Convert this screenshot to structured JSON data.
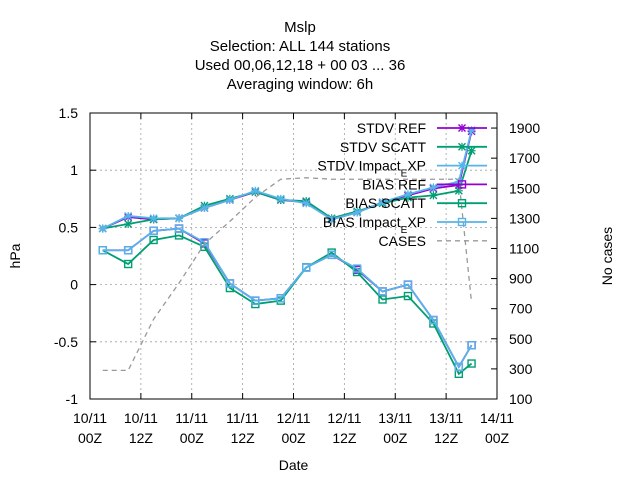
{
  "chart_data": {
    "type": "line",
    "title_lines": [
      "Mslp",
      "Selection: ALL     144 stations",
      "Used  00,06,12,18 + 00 03 ... 36",
      "Averaging window:  6h"
    ],
    "xlabel": "Date",
    "ylabel": "hPa",
    "y2label": "No cases",
    "xlim": [
      0,
      96
    ],
    "ylim": [
      -1,
      1.5
    ],
    "y2lim": [
      100,
      2000
    ],
    "x_ticks": [
      {
        "x": 0,
        "label": [
          "10/11",
          "00Z"
        ]
      },
      {
        "x": 12,
        "label": [
          "10/11",
          "12Z"
        ]
      },
      {
        "x": 24,
        "label": [
          "11/11",
          "00Z"
        ]
      },
      {
        "x": 36,
        "label": [
          "11/11",
          "12Z"
        ]
      },
      {
        "x": 48,
        "label": [
          "12/11",
          "00Z"
        ]
      },
      {
        "x": 60,
        "label": [
          "12/11",
          "12Z"
        ]
      },
      {
        "x": 72,
        "label": [
          "13/11",
          "00Z"
        ]
      },
      {
        "x": 84,
        "label": [
          "13/11",
          "12Z"
        ]
      },
      {
        "x": 96,
        "label": [
          "14/11",
          "00Z"
        ]
      }
    ],
    "y_ticks": [
      {
        "v": -1,
        "label": "-1"
      },
      {
        "v": -0.5,
        "label": "-0.5"
      },
      {
        "v": 0,
        "label": "0"
      },
      {
        "v": 0.5,
        "label": "0.5"
      },
      {
        "v": 1,
        "label": "1"
      },
      {
        "v": 1.5,
        "label": "1.5"
      }
    ],
    "y2_ticks": [
      {
        "v": 100,
        "label": "100"
      },
      {
        "v": 300,
        "label": "300"
      },
      {
        "v": 500,
        "label": "500"
      },
      {
        "v": 700,
        "label": "700"
      },
      {
        "v": 900,
        "label": "900"
      },
      {
        "v": 1100,
        "label": "1100"
      },
      {
        "v": 1300,
        "label": "1300"
      },
      {
        "v": 1500,
        "label": "1500"
      },
      {
        "v": 1700,
        "label": "1700"
      },
      {
        "v": 1900,
        "label": "1900"
      }
    ],
    "grid": true,
    "legend_position": "top-right",
    "series": [
      {
        "name": "STDV REF",
        "color": "#9400d3",
        "marker": "x",
        "dash": false,
        "axis": "y",
        "x": [
          3,
          9,
          15,
          21,
          27,
          33,
          39,
          45,
          51,
          57,
          63,
          69,
          75,
          81,
          87,
          90
        ],
        "y": [
          0.49,
          0.59,
          0.57,
          0.58,
          0.67,
          0.74,
          0.81,
          0.74,
          0.72,
          0.57,
          0.63,
          0.72,
          0.78,
          0.84,
          0.87,
          1.34
        ]
      },
      {
        "name": "STDV SCATT",
        "color": "#009e73",
        "marker": "x",
        "dash": false,
        "axis": "y",
        "x": [
          3,
          9,
          15,
          21,
          27,
          33,
          39,
          45,
          51,
          57,
          63,
          69,
          75,
          81,
          87,
          90
        ],
        "y": [
          0.49,
          0.53,
          0.57,
          0.58,
          0.69,
          0.75,
          0.81,
          0.74,
          0.73,
          0.58,
          0.64,
          0.71,
          0.76,
          0.78,
          0.82,
          1.17
        ]
      },
      {
        "name": "STDV Impact_EXP",
        "color": "#56b4e9",
        "marker": "x",
        "dash": false,
        "axis": "y",
        "x": [
          3,
          9,
          15,
          21,
          27,
          33,
          39,
          45,
          51,
          57,
          63,
          69,
          75,
          81,
          87,
          90
        ],
        "y": [
          0.49,
          0.6,
          0.58,
          0.58,
          0.67,
          0.74,
          0.82,
          0.75,
          0.71,
          0.57,
          0.63,
          0.72,
          0.79,
          0.85,
          0.9,
          1.35
        ]
      },
      {
        "name": "BIAS REF",
        "color": "#9400d3",
        "marker": "sq",
        "dash": false,
        "axis": "y",
        "x": [
          3,
          9,
          15,
          21,
          27,
          33,
          39,
          45,
          51,
          57,
          63,
          69,
          75,
          81,
          87,
          90
        ],
        "y": [
          0.3,
          0.3,
          0.47,
          0.49,
          0.36,
          0.01,
          -0.14,
          -0.12,
          0.15,
          0.26,
          0.13,
          -0.06,
          0.0,
          -0.31,
          -0.72,
          -0.53
        ]
      },
      {
        "name": "BIAS SCATT",
        "color": "#009e73",
        "marker": "sq",
        "dash": false,
        "axis": "y",
        "x": [
          3,
          9,
          15,
          21,
          27,
          33,
          39,
          45,
          51,
          57,
          63,
          69,
          75,
          81,
          87,
          90
        ],
        "y": [
          0.3,
          0.18,
          0.39,
          0.43,
          0.33,
          -0.03,
          -0.17,
          -0.14,
          0.15,
          0.28,
          0.11,
          -0.13,
          -0.1,
          -0.34,
          -0.78,
          -0.69
        ]
      },
      {
        "name": "BIAS Impact_EXP",
        "color": "#56b4e9",
        "marker": "sq",
        "dash": false,
        "axis": "y",
        "x": [
          3,
          9,
          15,
          21,
          27,
          33,
          39,
          45,
          51,
          57,
          63,
          69,
          75,
          81,
          87,
          90
        ],
        "y": [
          0.3,
          0.3,
          0.47,
          0.49,
          0.37,
          0.01,
          -0.14,
          -0.12,
          0.15,
          0.26,
          0.14,
          -0.06,
          0.0,
          -0.31,
          -0.72,
          -0.53
        ]
      },
      {
        "name": "CASES",
        "color": "#999999",
        "marker": "none",
        "dash": true,
        "axis": "y2",
        "x": [
          3,
          9,
          15,
          21,
          27,
          33,
          39,
          45,
          51,
          57,
          63,
          69,
          75,
          81,
          87,
          90
        ],
        "y": [
          290,
          290,
          630,
          870,
          1130,
          1280,
          1440,
          1560,
          1570,
          1560,
          1560,
          1560,
          1560,
          1560,
          1560,
          740
        ]
      }
    ]
  }
}
